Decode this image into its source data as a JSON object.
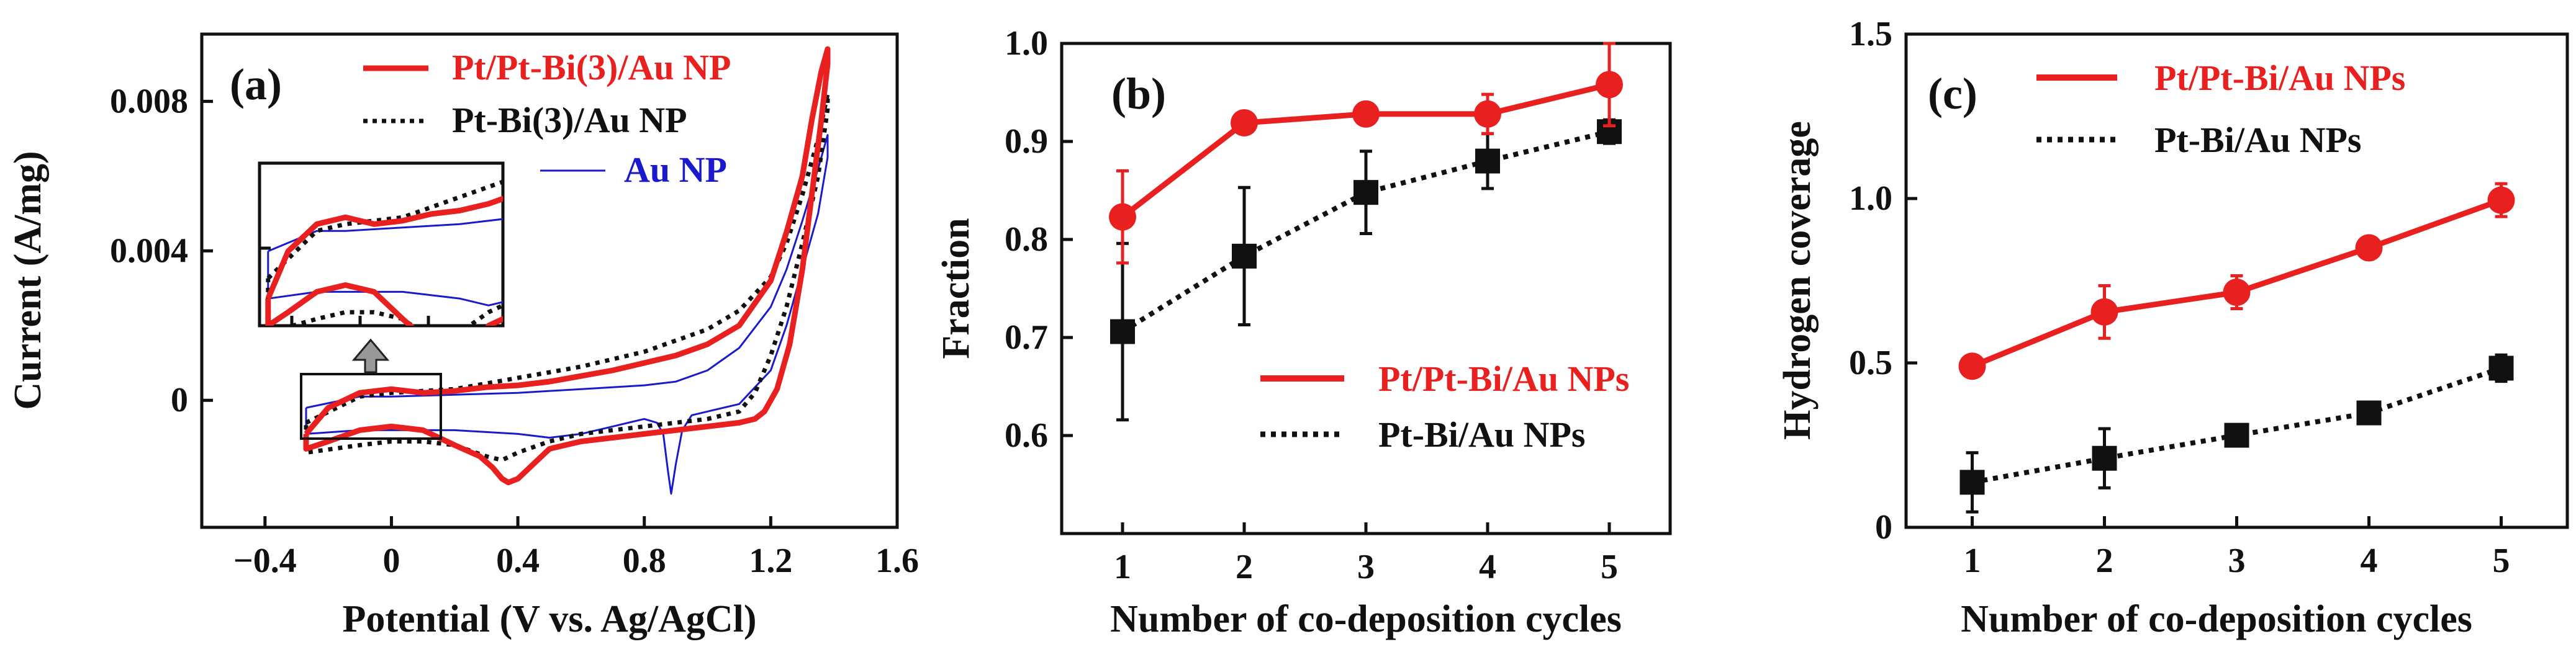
{
  "colors": {
    "red": "#e8201f",
    "black": "#111111",
    "blue": "#1a1acc",
    "arrow": "#999999"
  },
  "chart_data": [
    {
      "panel": "(a)",
      "type": "line",
      "xlabel": "Potential (V vs. Ag/AgCl)",
      "ylabel": "Current (A/mg)",
      "xlim": [
        -0.6,
        1.6
      ],
      "ylim": [
        -0.0034,
        0.0098
      ],
      "xticks": [
        -0.4,
        0,
        0.4,
        0.8,
        1.2,
        1.6
      ],
      "xtick_labels": [
        "−0.4",
        "0",
        "0.4",
        "0.8",
        "1.2",
        "1.6"
      ],
      "yticks": [
        0,
        0.004,
        0.008
      ],
      "ytick_labels": [
        "0",
        "0.004",
        "0.008"
      ],
      "inset_label": "zoom of boxed region",
      "series": [
        {
          "name": "Pt/Pt-Bi(3)/Au NP",
          "color": "red",
          "style": "solid",
          "width": "thick",
          "x": [
            -0.27,
            -0.2,
            -0.1,
            0,
            0.1,
            0.2,
            0.3,
            0.4,
            0.5,
            0.6,
            0.7,
            0.8,
            0.9,
            1.0,
            1.1,
            1.2,
            1.25,
            1.3,
            1.33,
            1.36,
            1.38,
            1.38,
            1.36,
            1.33,
            1.3,
            1.26,
            1.22,
            1.18,
            1.15,
            1.1,
            1.0,
            0.9,
            0.8,
            0.7,
            0.6,
            0.5,
            0.45,
            0.4,
            0.37,
            0.35,
            0.32,
            0.28,
            0.2,
            0.1,
            0,
            -0.1,
            -0.2,
            -0.27,
            -0.27
          ],
          "y": [
            -0.0009,
            -0.0002,
            0.0002,
            0.0003,
            0.0002,
            0.00025,
            0.00035,
            0.0004,
            0.0005,
            0.00065,
            0.0008,
            0.001,
            0.0012,
            0.0015,
            0.002,
            0.0032,
            0.0045,
            0.006,
            0.0075,
            0.0088,
            0.0094,
            0.009,
            0.0075,
            0.0055,
            0.0035,
            0.0015,
            0.0003,
            -0.0003,
            -0.0005,
            -0.0006,
            -0.0007,
            -0.0008,
            -0.0009,
            -0.001,
            -0.0011,
            -0.0013,
            -0.0017,
            -0.0021,
            -0.0022,
            -0.0021,
            -0.0018,
            -0.0015,
            -0.0012,
            -0.0008,
            -0.0007,
            -0.0008,
            -0.0011,
            -0.0013,
            -0.0009
          ]
        },
        {
          "name": "Pt-Bi(3)/Au NP",
          "color": "black",
          "style": "dotted",
          "width": "medium",
          "x": [
            -0.27,
            -0.1,
            0,
            0.2,
            0.4,
            0.6,
            0.8,
            0.9,
            1.0,
            1.1,
            1.2,
            1.25,
            1.3,
            1.35,
            1.38,
            1.38,
            1.35,
            1.3,
            1.25,
            1.2,
            1.15,
            1.1,
            1.0,
            0.8,
            0.6,
            0.5,
            0.4,
            0.35,
            0.3,
            0.2,
            0.1,
            0,
            -0.1,
            -0.27,
            -0.27
          ],
          "y": [
            -0.0006,
            0.0001,
            0.0002,
            0.0003,
            0.0006,
            0.0009,
            0.0013,
            0.0016,
            0.0019,
            0.0024,
            0.0033,
            0.0042,
            0.0055,
            0.007,
            0.0082,
            0.0078,
            0.006,
            0.0042,
            0.0025,
            0.0012,
            0.0002,
            -0.0003,
            -0.0005,
            -0.0007,
            -0.0009,
            -0.0011,
            -0.0014,
            -0.0016,
            -0.0015,
            -0.0012,
            -0.0011,
            -0.0011,
            -0.0012,
            -0.0014,
            -0.0006
          ]
        },
        {
          "name": "Au NP",
          "color": "blue",
          "style": "solid",
          "width": "thin",
          "x": [
            -0.27,
            -0.1,
            0,
            0.2,
            0.4,
            0.6,
            0.8,
            0.9,
            1.0,
            1.1,
            1.2,
            1.25,
            1.3,
            1.35,
            1.38,
            1.38,
            1.35,
            1.3,
            1.25,
            1.2,
            1.1,
            1.0,
            0.95,
            0.92,
            0.9,
            0.885,
            0.875,
            0.86,
            0.84,
            0.8,
            0.7,
            0.6,
            0.5,
            0.4,
            0.2,
            0,
            -0.1,
            -0.27,
            -0.27
          ],
          "y": [
            -0.0002,
            0.0001,
            0.0001,
            0.00015,
            0.0002,
            0.0003,
            0.0004,
            0.0005,
            0.0008,
            0.0014,
            0.0025,
            0.0035,
            0.0048,
            0.0062,
            0.0071,
            0.0065,
            0.005,
            0.0035,
            0.002,
            0.0008,
            -0.0001,
            -0.0003,
            -0.0004,
            -0.0008,
            -0.0017,
            -0.0025,
            -0.0019,
            -0.0009,
            -0.0006,
            -0.0005,
            -0.0007,
            -0.0009,
            -0.001,
            -0.0009,
            -0.0008,
            -0.0008,
            -0.0008,
            -0.0009,
            -0.0002
          ]
        }
      ]
    },
    {
      "panel": "(b)",
      "type": "line",
      "xlabel": "Number of co-deposition cycles",
      "ylabel": "Fraction",
      "xlim": [
        0.5,
        5.5
      ],
      "ylim": [
        0.5,
        1.0
      ],
      "xticks": [
        1,
        2,
        3,
        4,
        5
      ],
      "xtick_labels": [
        "1",
        "2",
        "3",
        "4",
        "5"
      ],
      "yticks": [
        0.6,
        0.7,
        0.8,
        0.9,
        1.0
      ],
      "ytick_labels": [
        "0.6",
        "0.7",
        "0.8",
        "0.9",
        "1.0"
      ],
      "series": [
        {
          "name": "Pt/Pt-Bi/Au NPs",
          "color": "red",
          "style": "solid",
          "marker": "circle",
          "x": [
            1,
            2,
            3,
            4,
            5
          ],
          "y": [
            0.823,
            0.919,
            0.928,
            0.928,
            0.958
          ],
          "err": [
            0.047,
            0.006,
            0.006,
            0.02,
            0.042
          ]
        },
        {
          "name": "Pt-Bi/Au NPs",
          "color": "black",
          "style": "dotted",
          "marker": "square",
          "x": [
            1,
            2,
            3,
            4,
            5
          ],
          "y": [
            0.706,
            0.783,
            0.848,
            0.88,
            0.91
          ],
          "err": [
            0.09,
            0.07,
            0.042,
            0.028,
            0.012
          ]
        }
      ]
    },
    {
      "panel": "(c)",
      "type": "line",
      "xlabel": "Number of co-deposition cycles",
      "ylabel": "Hydrogen coverage",
      "xlim": [
        0.5,
        5.5
      ],
      "ylim": [
        0,
        1.5
      ],
      "xticks": [
        1,
        2,
        3,
        4,
        5
      ],
      "xtick_labels": [
        "1",
        "2",
        "3",
        "4",
        "5"
      ],
      "yticks": [
        0,
        0.5,
        1.0,
        1.5
      ],
      "ytick_labels": [
        "0",
        "0.5",
        "1.0",
        "1.5"
      ],
      "series": [
        {
          "name": "Pt/Pt-Bi/Au NPs",
          "color": "red",
          "style": "solid",
          "marker": "circle",
          "x": [
            1,
            2,
            3,
            4,
            5
          ],
          "y": [
            0.49,
            0.655,
            0.715,
            0.85,
            0.995
          ],
          "err": [
            0.03,
            0.08,
            0.05,
            0.03,
            0.05
          ]
        },
        {
          "name": "Pt-Bi/Au NPs",
          "color": "black",
          "style": "dotted",
          "marker": "square",
          "x": [
            1,
            2,
            3,
            4,
            5
          ],
          "y": [
            0.137,
            0.21,
            0.28,
            0.348,
            0.484
          ],
          "err": [
            0.09,
            0.09,
            0.02,
            0.02,
            0.04
          ]
        }
      ]
    }
  ]
}
